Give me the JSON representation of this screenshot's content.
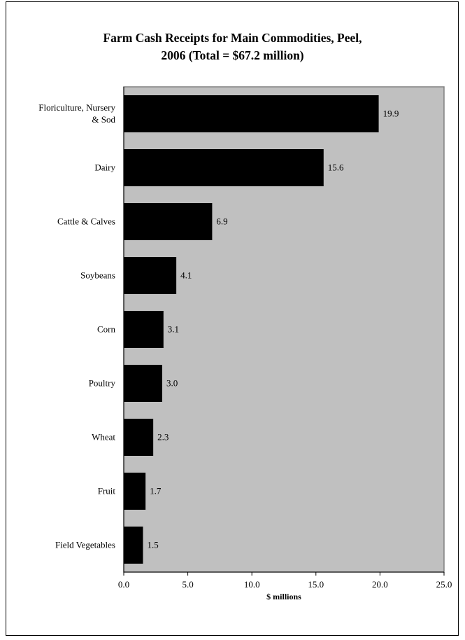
{
  "chart_data": {
    "type": "bar",
    "orientation": "horizontal",
    "title_line1": "Farm Cash Receipts for Main Commodities, Peel,",
    "title_line2": "2006 (Total = $67.2 million)",
    "xlabel": "$ millions",
    "ylabel": "",
    "xlim": [
      0,
      25
    ],
    "x_ticks": [
      "0.0",
      "5.0",
      "10.0",
      "15.0",
      "20.0",
      "25.0"
    ],
    "plot_background": "#c0c0c0",
    "bar_color": "#000000",
    "grid": false,
    "categories": [
      [
        "Floriculture, Nursery",
        "& Sod"
      ],
      [
        "Dairy"
      ],
      [
        "Cattle & Calves"
      ],
      [
        "Soybeans"
      ],
      [
        "Corn"
      ],
      [
        "Poultry"
      ],
      [
        "Wheat"
      ],
      [
        "Fruit"
      ],
      [
        "Field Vegetables"
      ]
    ],
    "values": [
      19.9,
      15.6,
      6.9,
      4.1,
      3.1,
      3.0,
      2.3,
      1.7,
      1.5
    ],
    "value_labels": [
      "19.9",
      "15.6",
      "6.9",
      "4.1",
      "3.1",
      "3.0",
      "2.3",
      "1.7",
      "1.5"
    ]
  }
}
